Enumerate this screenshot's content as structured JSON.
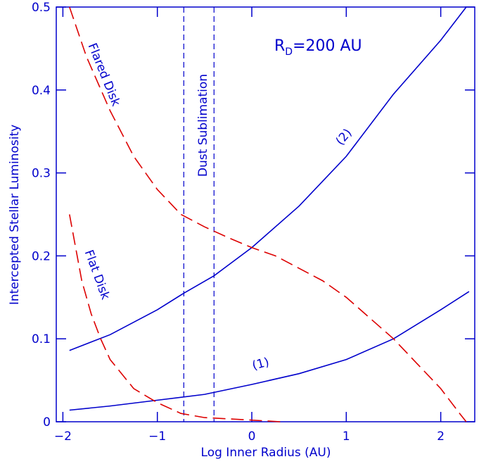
{
  "chart_data": {
    "type": "line",
    "xlabel": "Log Inner Radius  (AU)",
    "ylabel": "Intercepted Stellar Luminosity",
    "xlim": [
      -2.07,
      2.36
    ],
    "ylim": [
      0,
      0.5
    ],
    "xticks": [
      {
        "value": -2,
        "label": "−2"
      },
      {
        "value": -1,
        "label": "−1"
      },
      0,
      1,
      2
    ],
    "yticks": [
      0,
      0.1,
      0.2,
      0.3,
      0.4,
      0.5
    ],
    "axis_color": "#0000cc",
    "series": [
      {
        "name": "(1)",
        "color": "#0000cc",
        "dashed": false,
        "x": [
          -1.93,
          -1.5,
          -1,
          -0.5,
          0,
          0.5,
          1,
          1.5,
          2,
          2.3
        ],
        "values": [
          0.014,
          0.019,
          0.026,
          0.033,
          0.045,
          0.058,
          0.075,
          0.1,
          0.135,
          0.157
        ]
      },
      {
        "name": "(2)",
        "color": "#0000cc",
        "dashed": false,
        "x": [
          -1.93,
          -1.5,
          -1,
          -0.72,
          -0.4,
          0,
          0.5,
          1,
          1.5,
          2,
          2.27
        ],
        "values": [
          0.086,
          0.105,
          0.135,
          0.155,
          0.176,
          0.21,
          0.26,
          0.32,
          0.395,
          0.46,
          0.5
        ]
      },
      {
        "name": "Flared Disk",
        "color": "#dd0000",
        "dashed": true,
        "x": [
          -1.93,
          -1.75,
          -1.5,
          -1.25,
          -1,
          -0.75,
          -0.5,
          -0.25,
          0,
          0.25,
          0.5,
          0.75,
          1,
          1.25,
          1.5,
          1.75,
          2,
          2.2,
          2.27
        ],
        "values": [
          0.5,
          0.44,
          0.375,
          0.32,
          0.28,
          0.25,
          0.235,
          0.222,
          0.21,
          0.2,
          0.185,
          0.17,
          0.15,
          0.125,
          0.1,
          0.07,
          0.04,
          0.01,
          0
        ]
      },
      {
        "name": "Flat Disk",
        "color": "#dd0000",
        "dashed": true,
        "x": [
          -1.93,
          -1.8,
          -1.7,
          -1.6,
          -1.5,
          -1.25,
          -1,
          -0.75,
          -0.5,
          0,
          0.3
        ],
        "values": [
          0.25,
          0.17,
          0.13,
          0.1,
          0.075,
          0.04,
          0.023,
          0.01,
          0.005,
          0.002,
          0
        ]
      }
    ],
    "vlines": [
      -0.72,
      -0.4
    ],
    "vline_label": "Dust Sublimation",
    "rd_label": [
      "R",
      "D",
      "=200 AU"
    ]
  }
}
